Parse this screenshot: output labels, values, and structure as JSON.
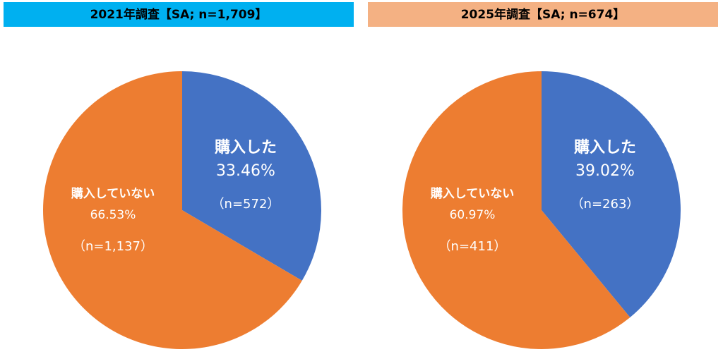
{
  "chart_data": [
    {
      "type": "pie",
      "title": "2021年調査【SA; n=1,709】",
      "title_color": "#00b0f0",
      "categories": [
        "購入した",
        "購入していない"
      ],
      "values": [
        33.46,
        66.53
      ],
      "value_labels": [
        "33.46%",
        "66.53%"
      ],
      "count_labels": [
        "（n=572）",
        "（n=1,137）"
      ],
      "colors": [
        "#4472c4",
        "#ed7d31"
      ]
    },
    {
      "type": "pie",
      "title": "2025年調査【SA; n=674】",
      "title_color": "#f4b183",
      "categories": [
        "購入した",
        "購入していない"
      ],
      "values": [
        39.02,
        60.97
      ],
      "value_labels": [
        "39.02%",
        "60.97%"
      ],
      "count_labels": [
        "（n=263）",
        "（n=411）"
      ],
      "colors": [
        "#4472c4",
        "#ed7d31"
      ]
    }
  ]
}
